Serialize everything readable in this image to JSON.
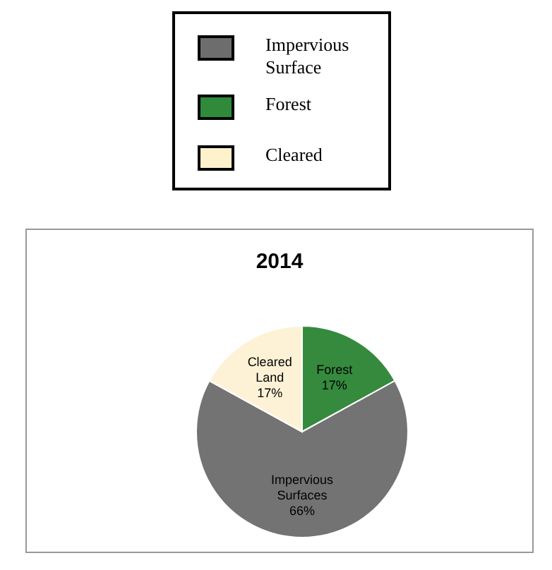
{
  "chart_data": [
    {
      "type": "other",
      "categories": [
        "Impervious Surface",
        "Forest",
        "Cleared"
      ],
      "colors": [
        "#6d6d6d",
        "#2f8a3a",
        "#fef2cc"
      ]
    },
    {
      "type": "pie",
      "title": "2014",
      "categories": [
        "Forest",
        "Impervious Surfaces",
        "Cleared Land"
      ],
      "values": [
        17,
        66,
        17
      ],
      "colors": [
        "#358a3d",
        "#737373",
        "#fdf2d6"
      ],
      "value_labels": [
        "17%",
        "66%",
        "17%"
      ]
    }
  ]
}
